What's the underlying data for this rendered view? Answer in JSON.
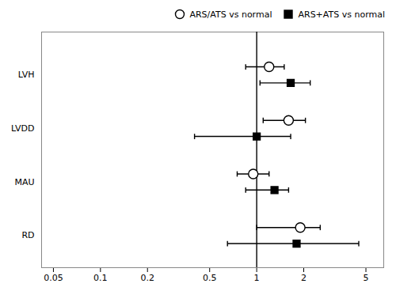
{
  "chart_data": {
    "type": "forest",
    "categories": [
      "LVH",
      "LVDD",
      "MAU",
      "RD"
    ],
    "series": [
      {
        "name": "ARS/ATS vs normal",
        "color": "#000000",
        "marker": "open_circle",
        "values": [
          1.2,
          1.6,
          0.95,
          1.9
        ],
        "lo": [
          0.85,
          1.1,
          0.75,
          1.0
        ],
        "hi": [
          1.5,
          2.05,
          1.2,
          2.55
        ]
      },
      {
        "name": "ARS+ATS vs normal",
        "color": "#000000",
        "marker": "square",
        "values": [
          1.65,
          1.0,
          1.3,
          1.8
        ],
        "lo": [
          1.05,
          0.4,
          0.85,
          0.65
        ],
        "hi": [
          2.2,
          1.65,
          1.6,
          4.5
        ]
      }
    ],
    "vline": 1.0,
    "log": "x",
    "xlim": [
      0.042,
      6.5
    ],
    "xticks": [
      0.05,
      0.1,
      0.2,
      0.5,
      1,
      2,
      5
    ],
    "legend": "upper right"
  }
}
